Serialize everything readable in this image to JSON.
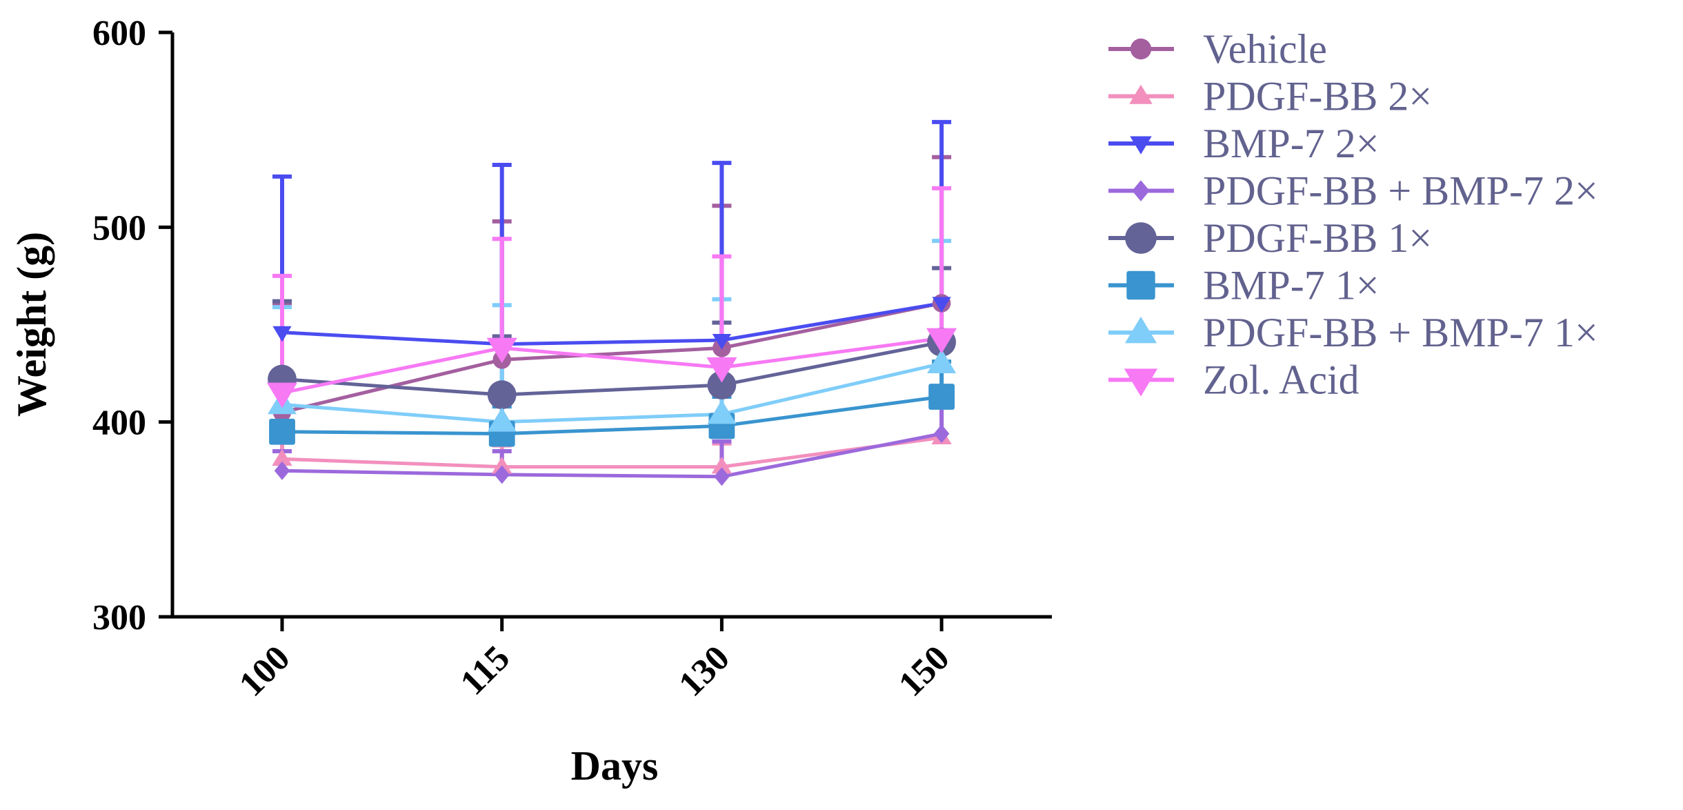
{
  "chart_data": {
    "type": "line",
    "title": "",
    "xlabel": "Days",
    "ylabel": "Weight (g)",
    "categories": [
      "100",
      "115",
      "130",
      "150"
    ],
    "ylim": [
      300,
      600
    ],
    "yticks": [
      "300",
      "400",
      "500",
      "600"
    ],
    "series": [
      {
        "name": "Vehicle",
        "marker": "circle",
        "color": "#a45f9f",
        "values": [
          405,
          432,
          438,
          461
        ],
        "errors": [
          56,
          71,
          73,
          75
        ]
      },
      {
        "name": "PDGF-BB 2×",
        "marker": "triangle-up",
        "color": "#f28fbd",
        "values": [
          381,
          377,
          377,
          392
        ],
        "errors": [
          17,
          11,
          12,
          20
        ]
      },
      {
        "name": "BMP-7 2×",
        "marker": "triangle-down",
        "color": "#4a4cf0",
        "values": [
          446,
          440,
          442,
          461
        ],
        "errors": [
          80,
          92,
          91,
          93
        ]
      },
      {
        "name": "PDGF-BB + BMP-7 2×",
        "marker": "diamond",
        "color": "#9c69dc",
        "values": [
          375,
          373,
          372,
          394
        ],
        "errors": [
          10,
          12,
          18,
          18
        ]
      },
      {
        "name": "PDGF-BB 1×",
        "marker": "circle",
        "color": "#636398",
        "values": [
          422,
          414,
          419,
          441
        ],
        "errors": [
          40,
          30,
          32,
          38
        ]
      },
      {
        "name": "BMP-7 1×",
        "marker": "square",
        "color": "#3994cf",
        "values": [
          395,
          394,
          398,
          413
        ],
        "errors": [
          12,
          14,
          15,
          18
        ]
      },
      {
        "name": "PDGF-BB + BMP-7 1×",
        "marker": "triangle-up",
        "color": "#7fcdf9",
        "values": [
          409,
          400,
          404,
          430
        ],
        "errors": [
          50,
          60,
          59,
          63
        ]
      },
      {
        "name": "Zol. Acid",
        "marker": "triangle-down",
        "color": "#f779f4",
        "values": [
          415,
          438,
          428,
          443
        ],
        "errors": [
          60,
          56,
          57,
          77
        ]
      }
    ]
  }
}
